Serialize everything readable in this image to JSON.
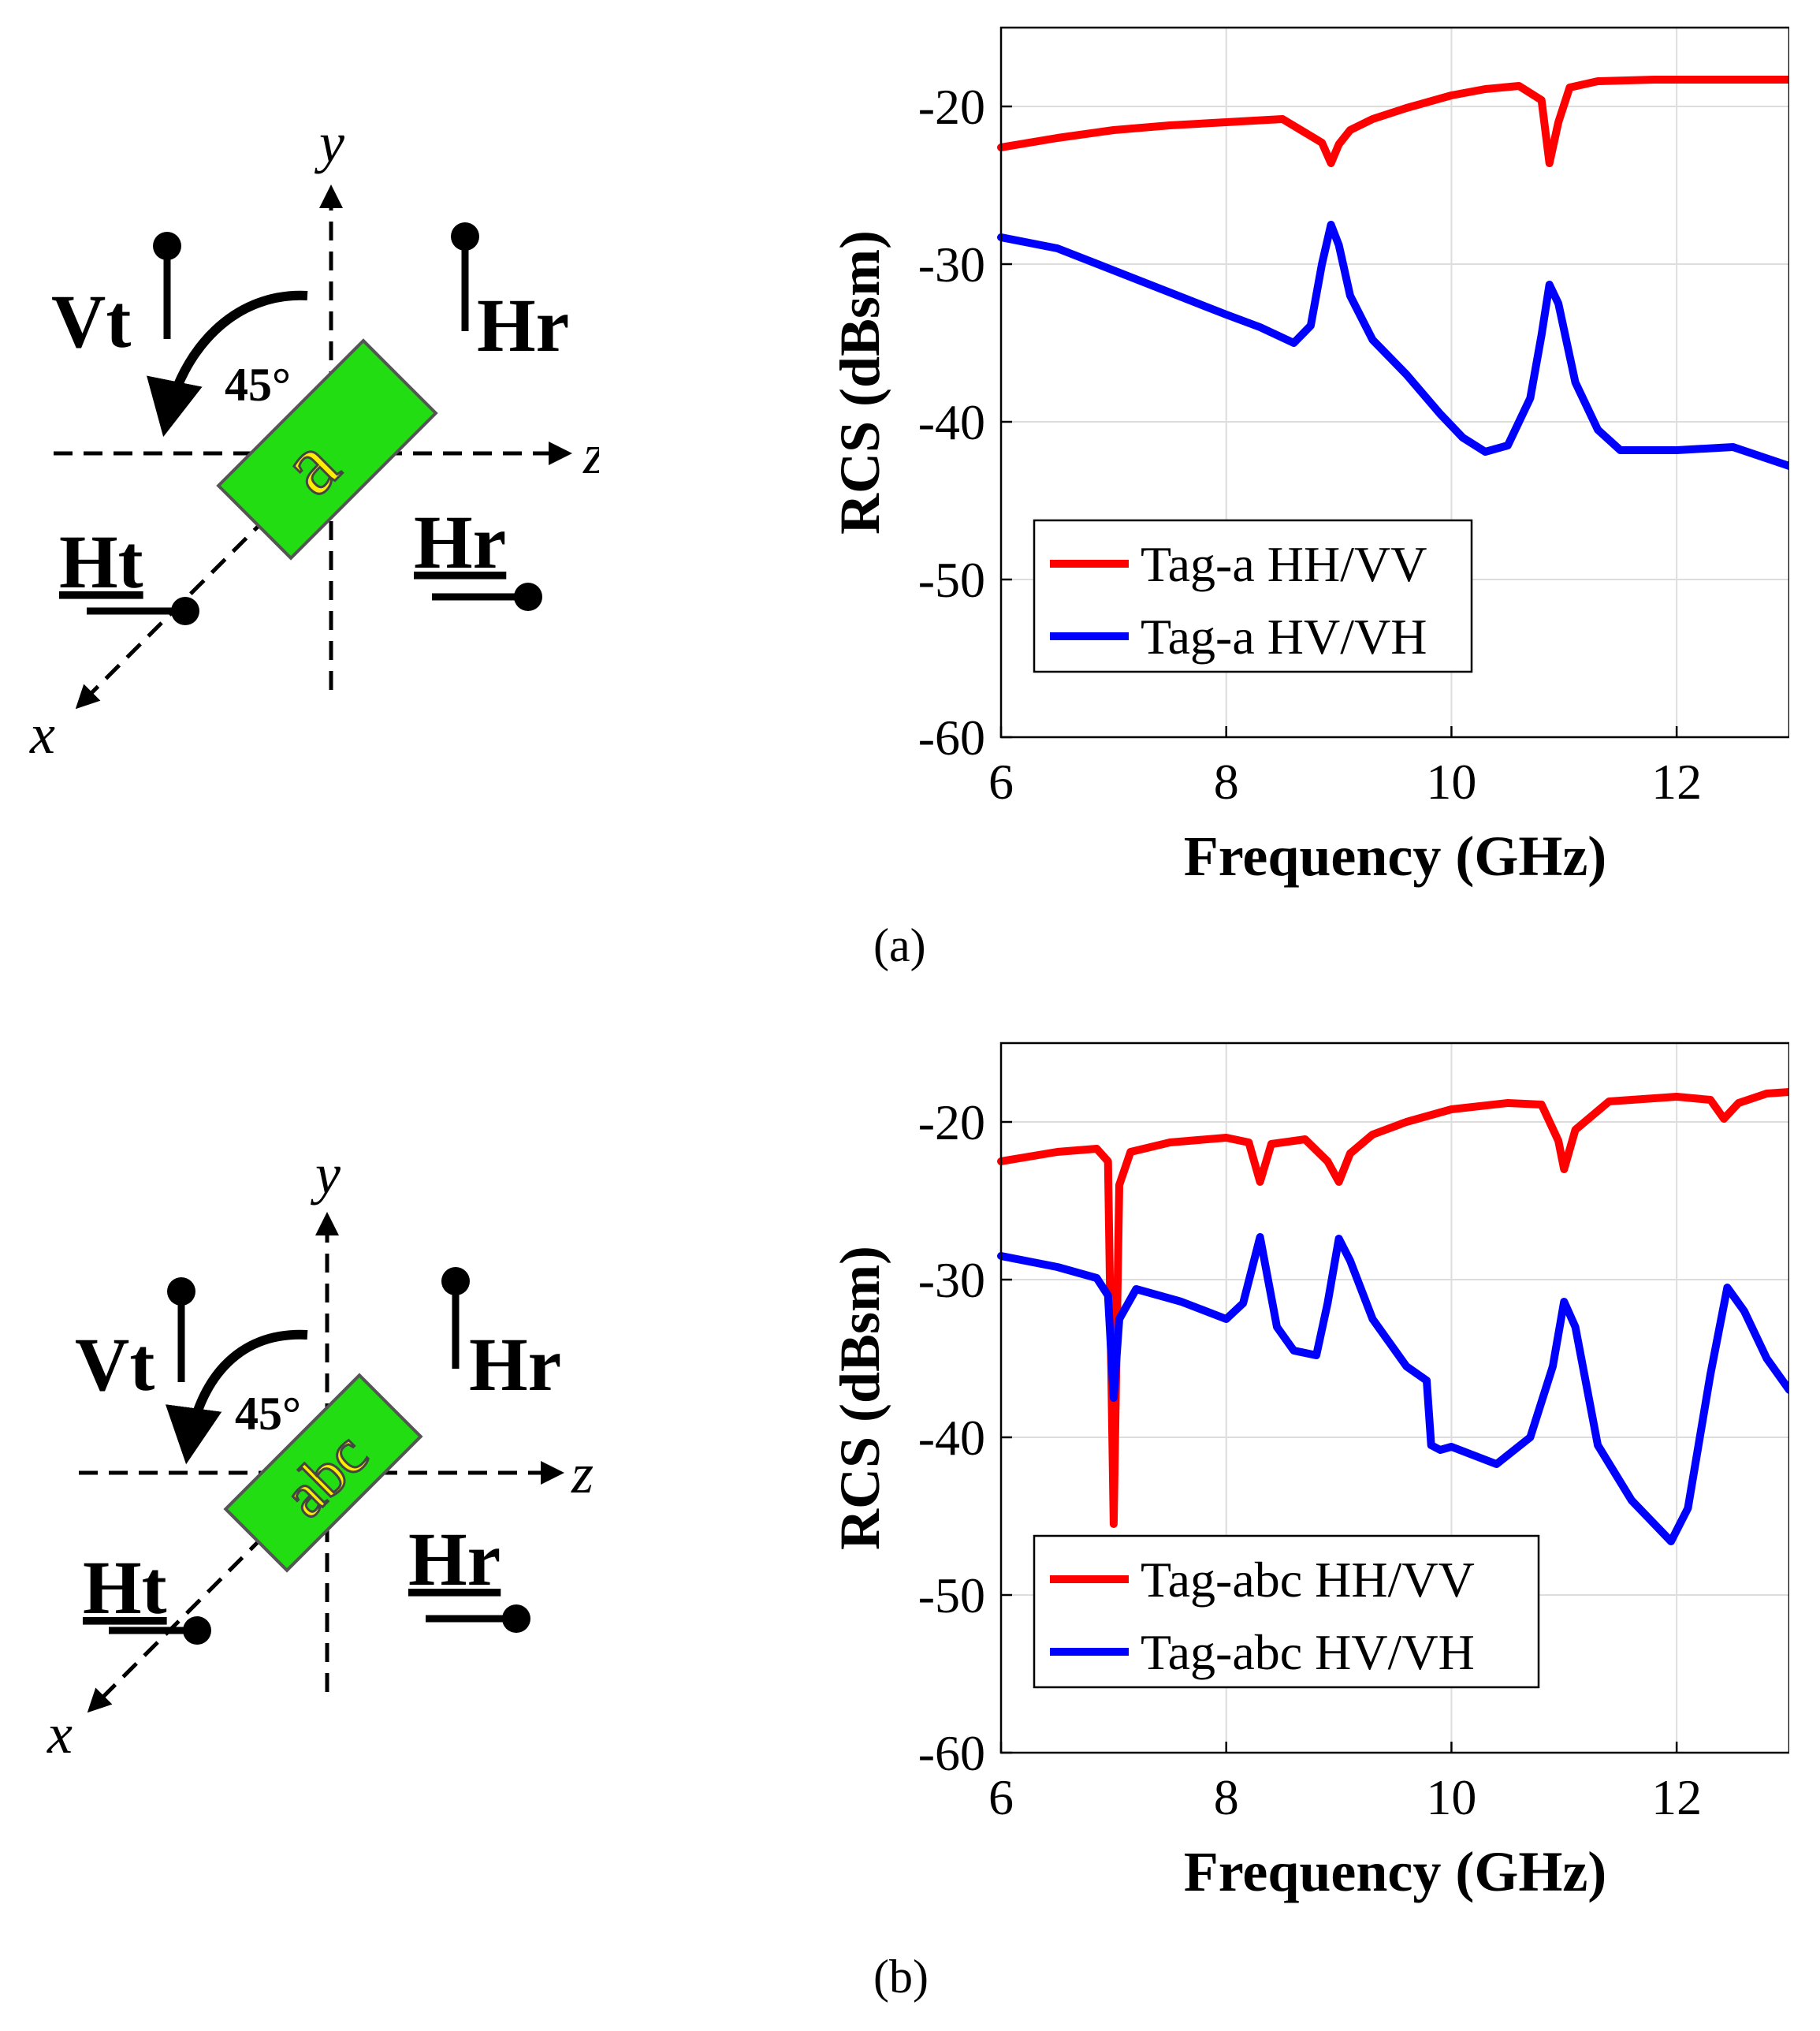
{
  "colors": {
    "hh": "#ff0000",
    "hv": "#0000ff",
    "tag_fill": "#22dd11",
    "tag_letter": "#ffee00",
    "grid": "#dddddd"
  },
  "panels": [
    {
      "id": "a",
      "caption": "(a)",
      "diagram": {
        "tag_text": "a",
        "angle_label": "45°",
        "axis_x": "x",
        "axis_y": "y",
        "axis_z": "z",
        "vt_label": "Vt",
        "hr_top_label": "Hr",
        "ht_label": "Ht",
        "hr_bottom_label": "Hr"
      },
      "chart_data": {
        "type": "line",
        "xlabel": "Frequency (GHz)",
        "ylabel": "RCS (dBsm)",
        "xlim": [
          6,
          13
        ],
        "ylim": [
          -60,
          -15
        ],
        "xticks": [
          6,
          8,
          10,
          12
        ],
        "yticks": [
          -20,
          -30,
          -40,
          -50,
          -60
        ],
        "grid": true,
        "legend_position": "bottom-left",
        "series": [
          {
            "name": "Tag-a HH/VV",
            "color": "#ff0000",
            "x": [
              6.0,
              6.5,
              7.0,
              7.5,
              8.0,
              8.5,
              8.85,
              8.93,
              9.0,
              9.1,
              9.3,
              9.6,
              10.0,
              10.3,
              10.6,
              10.8,
              10.87,
              10.95,
              11.05,
              11.3,
              11.8,
              12.5,
              13.0
            ],
            "y": [
              -22.6,
              -22.0,
              -21.5,
              -21.2,
              -21.0,
              -20.8,
              -22.3,
              -23.6,
              -22.4,
              -21.5,
              -20.8,
              -20.1,
              -19.3,
              -18.9,
              -18.7,
              -19.6,
              -23.6,
              -21.0,
              -18.8,
              -18.4,
              -18.3,
              -18.3,
              -18.3
            ]
          },
          {
            "name": "Tag-a HV/VH",
            "color": "#0000ff",
            "x": [
              6.0,
              6.5,
              7.0,
              7.5,
              8.0,
              8.3,
              8.6,
              8.75,
              8.85,
              8.93,
              9.0,
              9.1,
              9.3,
              9.6,
              9.9,
              10.1,
              10.3,
              10.5,
              10.7,
              10.8,
              10.87,
              10.95,
              11.1,
              11.3,
              11.5,
              12.0,
              12.5,
              13.0
            ],
            "y": [
              -28.3,
              -29.0,
              -30.4,
              -31.8,
              -33.2,
              -34.0,
              -35.0,
              -33.9,
              -30.0,
              -27.5,
              -28.8,
              -32.0,
              -34.8,
              -37.0,
              -39.5,
              -41.0,
              -41.9,
              -41.5,
              -38.5,
              -34.5,
              -31.3,
              -32.5,
              -37.5,
              -40.5,
              -41.8,
              -41.8,
              -41.6,
              -42.8
            ]
          }
        ]
      }
    },
    {
      "id": "b",
      "caption": "(b)",
      "diagram": {
        "tag_text": "abc",
        "angle_label": "45°",
        "axis_x": "x",
        "axis_y": "y",
        "axis_z": "z",
        "vt_label": "Vt",
        "hr_top_label": "Hr",
        "ht_label": "Ht",
        "hr_bottom_label": "Hr"
      },
      "chart_data": {
        "type": "line",
        "xlabel": "Frequency (GHz)",
        "ylabel": "RCS (dBsm)",
        "xlim": [
          6,
          13
        ],
        "ylim": [
          -60,
          -15
        ],
        "xticks": [
          6,
          8,
          10,
          12
        ],
        "yticks": [
          -20,
          -30,
          -40,
          -50,
          -60
        ],
        "grid": true,
        "legend_position": "bottom-left",
        "series": [
          {
            "name": "Tag-abc HH/VV",
            "color": "#ff0000",
            "x": [
              6.0,
              6.5,
              6.85,
              6.95,
              7.0,
              7.05,
              7.15,
              7.5,
              8.0,
              8.2,
              8.3,
              8.4,
              8.7,
              8.9,
              9.0,
              9.1,
              9.3,
              9.6,
              10.0,
              10.5,
              10.8,
              10.95,
              11.0,
              11.1,
              11.4,
              12.0,
              12.3,
              12.42,
              12.55,
              12.8,
              13.0
            ],
            "y": [
              -22.5,
              -21.9,
              -21.7,
              -22.5,
              -45.5,
              -24.0,
              -21.9,
              -21.3,
              -21.0,
              -21.3,
              -23.8,
              -21.4,
              -21.1,
              -22.5,
              -23.8,
              -22.0,
              -20.8,
              -20.0,
              -19.2,
              -18.8,
              -18.9,
              -21.2,
              -23.0,
              -20.5,
              -18.7,
              -18.4,
              -18.6,
              -19.8,
              -18.8,
              -18.2,
              -18.1
            ]
          },
          {
            "name": "Tag-abc HV/VH",
            "color": "#0000ff",
            "x": [
              6.0,
              6.5,
              6.85,
              6.95,
              7.0,
              7.05,
              7.2,
              7.6,
              8.0,
              8.15,
              8.3,
              8.45,
              8.6,
              8.8,
              8.9,
              9.0,
              9.1,
              9.3,
              9.6,
              9.78,
              9.82,
              9.9,
              10.0,
              10.4,
              10.7,
              10.9,
              11.0,
              11.1,
              11.3,
              11.6,
              11.95,
              12.1,
              12.3,
              12.45,
              12.6,
              12.8,
              13.0
            ],
            "y": [
              -28.5,
              -29.2,
              -29.9,
              -31.0,
              -37.5,
              -32.5,
              -30.6,
              -31.4,
              -32.5,
              -31.5,
              -27.3,
              -33.0,
              -34.5,
              -34.8,
              -31.5,
              -27.4,
              -28.8,
              -32.5,
              -35.5,
              -36.4,
              -40.5,
              -40.8,
              -40.6,
              -41.7,
              -40.0,
              -35.5,
              -31.4,
              -33.0,
              -40.5,
              -44.0,
              -46.6,
              -44.5,
              -36.0,
              -30.5,
              -32.0,
              -35.0,
              -37.0
            ]
          }
        ]
      }
    }
  ]
}
